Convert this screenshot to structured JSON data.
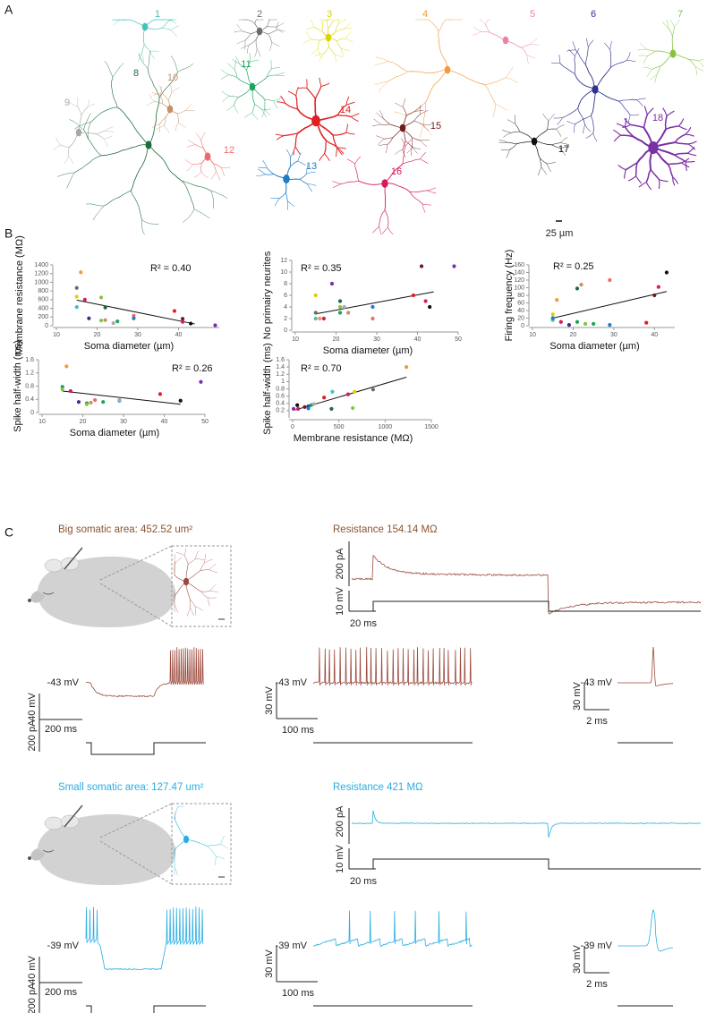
{
  "panel_labels": [
    "A",
    "B",
    "C"
  ],
  "neuron_labels": [
    {
      "label": "1",
      "color": "#45c1b8"
    },
    {
      "label": "2",
      "color": "#6b6b6b"
    },
    {
      "label": "3",
      "color": "#d9d400"
    },
    {
      "label": "4",
      "color": "#f2993a"
    },
    {
      "label": "5",
      "color": "#ee7fa6"
    },
    {
      "label": "6",
      "color": "#2f3391"
    },
    {
      "label": "7",
      "color": "#86c440"
    },
    {
      "label": "8",
      "color": "#1c6b3a"
    },
    {
      "label": "9",
      "color": "#a8a8a8"
    },
    {
      "label": "10",
      "color": "#c69069"
    },
    {
      "label": "11",
      "color": "#19a45a"
    },
    {
      "label": "12",
      "color": "#ef6a6a"
    },
    {
      "label": "13",
      "color": "#1f7cc7"
    },
    {
      "label": "14",
      "color": "#e11f22"
    },
    {
      "label": "15",
      "color": "#6d1b1b"
    },
    {
      "label": "16",
      "color": "#d7195c"
    },
    {
      "label": "17",
      "color": "#111111"
    },
    {
      "label": "18",
      "color": "#7a2fa6"
    }
  ],
  "scale_bar": "25 µm",
  "chart_data": [
    {
      "type": "scatter",
      "xlabel": "Soma diameter (µm)",
      "ylabel": "Membrane resistance (MΩ)",
      "annotation": "R² = 0.40",
      "xlim": [
        10,
        50
      ],
      "xticks": [
        10,
        20,
        30,
        40
      ],
      "ylim": [
        0,
        1400
      ],
      "yticks": [
        0,
        200,
        400,
        600,
        800,
        1000,
        1200,
        1400
      ],
      "x": [
        15,
        16,
        15,
        15,
        17,
        21,
        22,
        18,
        21,
        22,
        24,
        25,
        29,
        29,
        39,
        41,
        43,
        41,
        49
      ],
      "values": [
        870,
        1230,
        670,
        430,
        600,
        650,
        420,
        170,
        120,
        130,
        60,
        100,
        230,
        170,
        340,
        160,
        50,
        90,
        10
      ],
      "colors": [
        "#6b6b6b",
        "#f2993a",
        "#d9d400",
        "#45c1b8",
        "#d7195c",
        "#86c440",
        "#1c6b3a",
        "#2f3391",
        "#86c440",
        "#c69069",
        "#a8a8a8",
        "#19a45a",
        "#ef6a6a",
        "#1f7cc7",
        "#e11f22",
        "#6d1b1b",
        "#111111",
        "#d7195c",
        "#7a2fa6"
      ],
      "trend_x": [
        15,
        44
      ],
      "trend_y": [
        590,
        40
      ]
    },
    {
      "type": "scatter",
      "xlabel": "Soma diameter (µm)",
      "ylabel": "No primairy neurites",
      "annotation": "R² = 0.35",
      "xlim": [
        10,
        50
      ],
      "xticks": [
        10,
        20,
        30,
        40,
        50
      ],
      "ylim": [
        0,
        12
      ],
      "yticks": [
        0,
        2,
        4,
        6,
        8,
        10,
        12
      ],
      "x": [
        15,
        15,
        15,
        16,
        17,
        19,
        21,
        21,
        22,
        21,
        23,
        29,
        29,
        39,
        41,
        42,
        43,
        49
      ],
      "values": [
        2,
        3,
        6,
        2,
        2,
        8,
        5,
        3,
        4,
        4,
        3,
        2,
        4,
        6,
        11,
        5,
        4,
        11
      ],
      "colors": [
        "#45c1b8",
        "#6b6b6b",
        "#d9d400",
        "#f2993a",
        "#d7195c",
        "#7a2fa6",
        "#1c6b3a",
        "#19a45a",
        "#a8a8a8",
        "#86c440",
        "#c69069",
        "#ef6a6a",
        "#1f7cc7",
        "#e11f22",
        "#6d1b1b",
        "#d7195c",
        "#111111",
        "#7a2fa6"
      ],
      "trend_x": [
        15,
        44
      ],
      "trend_y": [
        2.8,
        6.6
      ]
    },
    {
      "type": "scatter",
      "xlabel": "Soma diameter (µm)",
      "ylabel": "Firing frequency (Hz)",
      "annotation": "R² = 0.25",
      "xlim": [
        10,
        45
      ],
      "xticks": [
        10,
        20,
        30,
        40
      ],
      "ylim": [
        0,
        160
      ],
      "yticks": [
        0,
        20,
        40,
        60,
        80,
        100,
        120,
        140,
        160
      ],
      "x": [
        15,
        15,
        15,
        16,
        17,
        19,
        21,
        21,
        22,
        29,
        23,
        25,
        29,
        38,
        41,
        40,
        43
      ],
      "values": [
        15,
        20,
        30,
        68,
        10,
        2,
        98,
        10,
        108,
        120,
        5,
        5,
        2,
        8,
        102,
        80,
        140
      ],
      "colors": [
        "#45c1b8",
        "#1f7cc7",
        "#d9d400",
        "#f2993a",
        "#d7195c",
        "#2f3391",
        "#1c6b3a",
        "#19a45a",
        "#c69069",
        "#ef6a6a",
        "#86c440",
        "#19a45a",
        "#1f7cc7",
        "#e11f22",
        "#d7195c",
        "#6d1b1b",
        "#111111"
      ],
      "trend_x": [
        15,
        43
      ],
      "trend_y": [
        20,
        90
      ]
    },
    {
      "type": "scatter",
      "xlabel": "Soma diameter (µm)",
      "ylabel": "Spike half-width (ms)",
      "annotation": "R² = 0.26",
      "xlim": [
        10,
        50
      ],
      "xticks": [
        10,
        20,
        30,
        40,
        50
      ],
      "ylim": [
        0,
        1.6
      ],
      "yticks": [
        0,
        0.4,
        0.8,
        1.2,
        1.6
      ],
      "x": [
        16,
        15,
        15,
        17,
        19,
        21,
        21,
        23,
        22,
        25,
        29,
        29,
        39,
        44,
        49
      ],
      "values": [
        1.4,
        0.78,
        0.7,
        0.65,
        0.32,
        0.28,
        0.25,
        0.38,
        0.3,
        0.32,
        0.36,
        0.38,
        0.56,
        0.36,
        0.93
      ],
      "colors": [
        "#f2993a",
        "#19a45a",
        "#86c440",
        "#d7195c",
        "#2f3391",
        "#1c6b3a",
        "#86c440",
        "#ef6a6a",
        "#c69069",
        "#19a45a",
        "#1f7cc7",
        "#a8a8a8",
        "#e11f22",
        "#111111",
        "#7a2fa6"
      ],
      "trend_x": [
        15,
        44
      ],
      "trend_y": [
        0.65,
        0.25
      ]
    },
    {
      "type": "scatter",
      "xlabel": "Membrane resistance (MΩ)",
      "ylabel": "Spike half-width (ms)",
      "annotation": "R² = 0.70",
      "xlim": [
        0,
        1500
      ],
      "xticks": [
        0,
        500,
        1000,
        1500
      ],
      "ylim": [
        0,
        1.6
      ],
      "yticks": [
        0.2,
        0.4,
        0.6,
        0.8,
        1,
        1.2,
        1.4,
        1.6
      ],
      "x": [
        10,
        60,
        50,
        130,
        170,
        170,
        200,
        340,
        230,
        420,
        430,
        600,
        670,
        650,
        870,
        1230
      ],
      "values": [
        0.25,
        0.25,
        0.35,
        0.3,
        0.32,
        0.26,
        0.35,
        0.56,
        0.38,
        0.25,
        0.72,
        0.65,
        0.72,
        0.27,
        0.78,
        1.4
      ],
      "colors": [
        "#7a2fa6",
        "#d7195c",
        "#111111",
        "#6d1b1b",
        "#2f3391",
        "#1f7cc7",
        "#19a45a",
        "#e11f22",
        "#a8a8a8",
        "#1c6b3a",
        "#45c1b8",
        "#d7195c",
        "#d9d400",
        "#86c440",
        "#6b6b6b",
        "#f2993a"
      ],
      "trend_x": [
        30,
        1230
      ],
      "trend_y": [
        0.22,
        1.12
      ]
    }
  ],
  "panel_c": [
    {
      "title": "Big somatic area: 452.52 um²",
      "resistance": "Resistance 154.14 MΩ",
      "color": "#8a5533",
      "trace_color": "#9c4a3e",
      "labels": {
        "current": "200 pA",
        "voltage": "10 mV",
        "time": "20 ms",
        "rest": "-43 mV",
        "hyper_v": "40 mV",
        "hyper_i": "200 pA",
        "hyper_t": "200 ms",
        "train_v": "30 mV",
        "train_t": "100 ms",
        "single_v": "30 mV",
        "single_t": "2 ms"
      }
    },
    {
      "title": "Small somatic area: 127.47 um²",
      "resistance": "Resistance 421 MΩ",
      "color": "#2aaee2",
      "trace_color": "#2aaee2",
      "labels": {
        "current": "200 pA",
        "voltage": "10 mV",
        "time": "20 ms",
        "rest": "-39 mV",
        "hyper_v": "40 mV",
        "hyper_i": "200 pA",
        "hyper_t": "200 ms",
        "train_v": "30 mV",
        "train_t": "100 ms",
        "single_v": "30 mV",
        "single_t": "2 ms"
      }
    }
  ]
}
